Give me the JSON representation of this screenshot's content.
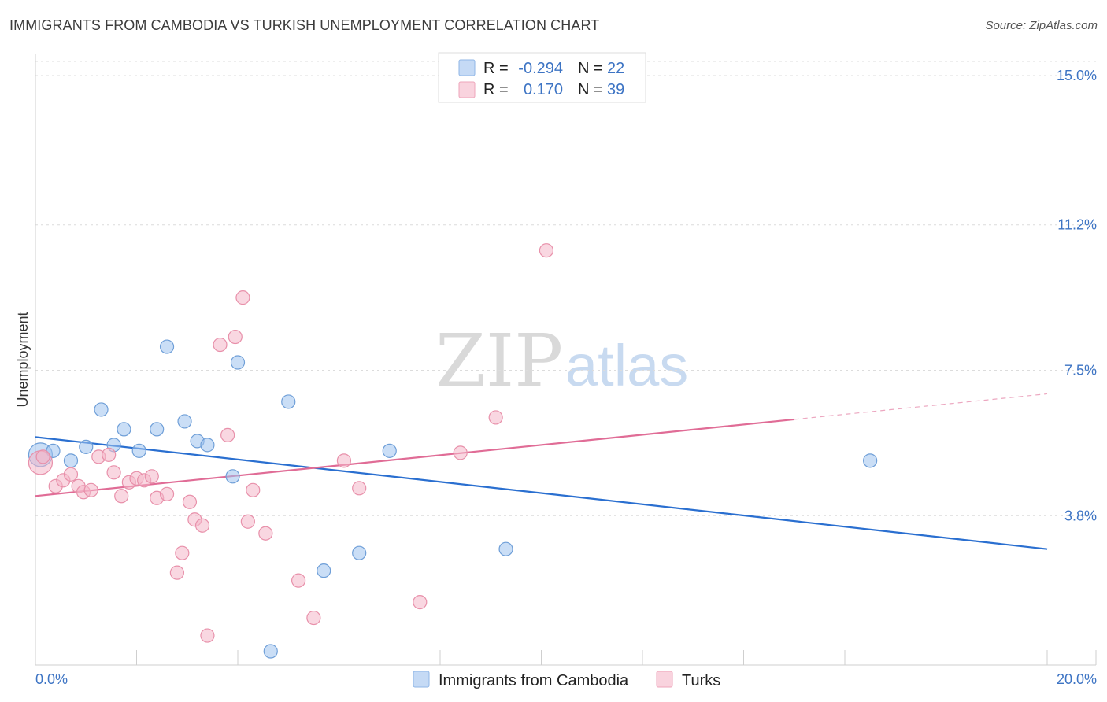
{
  "header": {
    "title": "IMMIGRANTS FROM CAMBODIA VS TURKISH UNEMPLOYMENT CORRELATION CHART",
    "source": "Source: ZipAtlas.com"
  },
  "watermark": {
    "zip": "ZIP",
    "atlas": "atlas"
  },
  "legend": {
    "rows": [
      {
        "r_label": "R =",
        "r_value": "-0.294",
        "n_label": "N =",
        "n_value": "22",
        "color": "#9ec2ee"
      },
      {
        "r_label": "R =",
        "r_value": "0.170",
        "n_label": "N =",
        "n_value": "39",
        "color": "#f4b6c8"
      }
    ]
  },
  "bottom_legend": {
    "items": [
      {
        "label": "Immigrants from Cambodia",
        "color": "#9ec2ee"
      },
      {
        "label": "Turks",
        "color": "#f4b6c8"
      }
    ]
  },
  "chart_data": {
    "type": "scatter",
    "title": "IMMIGRANTS FROM CAMBODIA VS TURKISH UNEMPLOYMENT CORRELATION CHART",
    "xlabel": "",
    "ylabel": "Unemployment",
    "xlim": [
      0,
      20
    ],
    "ylim": [
      0,
      15.5
    ],
    "x_tick_labels": [
      "0.0%",
      "20.0%"
    ],
    "y_ticks": [
      3.8,
      7.5,
      11.2,
      15.0
    ],
    "y_tick_labels": [
      "3.8%",
      "7.5%",
      "11.2%",
      "15.0%"
    ],
    "grid": true,
    "series": [
      {
        "name": "Immigrants from Cambodia",
        "color": "#9ec2ee",
        "stroke": "#6f9fd8",
        "line_color": "#2a6fd0",
        "trend": {
          "x0": 0,
          "y0": 5.8,
          "x1": 20,
          "y1": 2.95
        },
        "points": [
          [
            0.1,
            5.35
          ],
          [
            0.35,
            5.45
          ],
          [
            0.7,
            5.2
          ],
          [
            1.0,
            5.55
          ],
          [
            1.3,
            6.5
          ],
          [
            1.55,
            5.6
          ],
          [
            1.75,
            6.0
          ],
          [
            2.05,
            5.45
          ],
          [
            2.4,
            6.0
          ],
          [
            2.6,
            8.1
          ],
          [
            2.95,
            6.2
          ],
          [
            3.2,
            5.7
          ],
          [
            3.4,
            5.6
          ],
          [
            3.9,
            4.8
          ],
          [
            4.0,
            7.7
          ],
          [
            4.65,
            0.35
          ],
          [
            5.0,
            6.7
          ],
          [
            5.7,
            2.4
          ],
          [
            6.4,
            2.85
          ],
          [
            7.0,
            5.45
          ],
          [
            9.3,
            2.95
          ],
          [
            16.5,
            5.2
          ]
        ]
      },
      {
        "name": "Turks",
        "color": "#f4b6c8",
        "stroke": "#e890aa",
        "line_color": "#e06c96",
        "trend": {
          "x0": 0,
          "y0": 4.3,
          "x1": 15,
          "y1": 6.25,
          "dash_x1": 20,
          "dash_y1": 6.9
        },
        "points": [
          [
            0.1,
            5.15
          ],
          [
            0.4,
            4.55
          ],
          [
            0.55,
            4.7
          ],
          [
            0.7,
            4.85
          ],
          [
            0.85,
            4.55
          ],
          [
            0.95,
            4.4
          ],
          [
            1.1,
            4.45
          ],
          [
            1.25,
            5.3
          ],
          [
            1.45,
            5.35
          ],
          [
            1.55,
            4.9
          ],
          [
            1.7,
            4.3
          ],
          [
            1.85,
            4.65
          ],
          [
            2.0,
            4.75
          ],
          [
            2.15,
            4.7
          ],
          [
            2.3,
            4.8
          ],
          [
            2.4,
            4.25
          ],
          [
            2.6,
            4.35
          ],
          [
            2.8,
            2.35
          ],
          [
            2.9,
            2.85
          ],
          [
            3.05,
            4.15
          ],
          [
            3.15,
            3.7
          ],
          [
            3.3,
            3.55
          ],
          [
            3.4,
            0.75
          ],
          [
            3.65,
            8.15
          ],
          [
            3.8,
            5.85
          ],
          [
            3.95,
            8.35
          ],
          [
            4.1,
            9.35
          ],
          [
            4.2,
            3.65
          ],
          [
            4.3,
            4.45
          ],
          [
            4.55,
            3.35
          ],
          [
            5.2,
            2.15
          ],
          [
            5.5,
            1.2
          ],
          [
            6.1,
            5.2
          ],
          [
            6.4,
            4.5
          ],
          [
            7.6,
            1.6
          ],
          [
            8.4,
            5.4
          ],
          [
            9.1,
            6.3
          ],
          [
            10.1,
            10.55
          ],
          [
            0.15,
            5.3
          ]
        ]
      }
    ]
  }
}
